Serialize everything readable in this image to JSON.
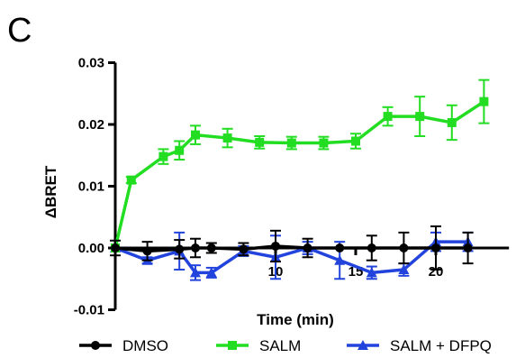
{
  "panel_label": "C",
  "chart_data": {
    "type": "line",
    "title": "",
    "xlabel": "Time (min)",
    "ylabel": "ΔBRET",
    "xlim": [
      0,
      24
    ],
    "ylim": [
      -0.01,
      0.03
    ],
    "x_ticks": [
      {
        "value": 10,
        "label": "10"
      },
      {
        "value": 15,
        "label": "15"
      },
      {
        "value": 20,
        "label": "20"
      }
    ],
    "y_ticks": [
      {
        "value": -0.01,
        "label": "-0.01"
      },
      {
        "value": 0.0,
        "label": "0.00"
      },
      {
        "value": 0.01,
        "label": "0.01"
      },
      {
        "value": 0.02,
        "label": "0.02"
      },
      {
        "value": 0.03,
        "label": "0.03"
      }
    ],
    "grid": false,
    "legend_position": "bottom",
    "series": [
      {
        "name": "DMSO",
        "color": "#000000",
        "marker": "circle",
        "x": [
          0,
          2,
          4,
          5,
          6,
          8,
          10,
          12,
          14,
          16,
          18,
          20,
          22
        ],
        "y": [
          0.0,
          -0.0005,
          -0.0002,
          0.0,
          0.0,
          -0.0002,
          0.0003,
          0.0,
          0.0,
          0.0,
          0.0,
          0.0,
          0.0
        ],
        "err": [
          0.0012,
          0.0015,
          0.0015,
          0.0015,
          0.0008,
          0.001,
          0.0025,
          0.0015,
          0.0,
          0.002,
          0.0025,
          0.0035,
          0.0025
        ]
      },
      {
        "name": "SALM",
        "color": "#22dd22",
        "marker": "square",
        "x": [
          0,
          1,
          3,
          4,
          5,
          7,
          9,
          11,
          13,
          15,
          17,
          19,
          21,
          23
        ],
        "y": [
          0.0,
          0.011,
          0.0148,
          0.0158,
          0.0183,
          0.0178,
          0.0171,
          0.017,
          0.017,
          0.0173,
          0.0213,
          0.0213,
          0.0203,
          0.0237
        ],
        "err": [
          0.0,
          0.0005,
          0.0012,
          0.0015,
          0.0015,
          0.0015,
          0.001,
          0.001,
          0.001,
          0.0012,
          0.0015,
          0.0032,
          0.0028,
          0.0035
        ]
      },
      {
        "name": "SALM + DFPQ",
        "color": "#2244dd",
        "marker": "triangle",
        "x": [
          0,
          2,
          4,
          5,
          6,
          8,
          10,
          12,
          14,
          16,
          18,
          20,
          22
        ],
        "y": [
          0.0,
          -0.002,
          -0.0005,
          -0.004,
          -0.004,
          -0.0005,
          -0.0015,
          0.0,
          -0.002,
          -0.004,
          -0.0035,
          0.001,
          0.001
        ],
        "err": [
          0.0,
          0.0005,
          0.003,
          0.0012,
          0.0008,
          0.0008,
          0.0035,
          0.001,
          0.003,
          0.001,
          0.001,
          0.0015,
          0.0015
        ]
      }
    ]
  }
}
